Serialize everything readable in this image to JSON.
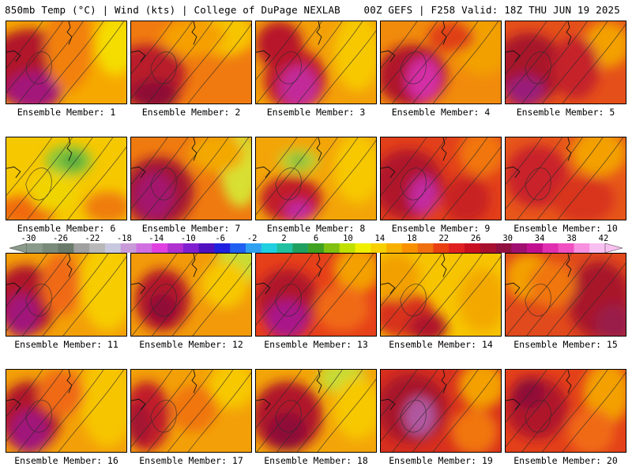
{
  "header": {
    "left": "850mb Temp (°C) | Wind (kts) | College of DuPage NEXLAB",
    "right": "00Z GEFS | F258 Valid: 18Z THU JUN 19 2025"
  },
  "panels": [
    {
      "label": "Ensemble Member: 1",
      "field": {
        "base": "#f6a800",
        "hot": [
          [
            30,
            60,
            55,
            50,
            "#b1142a"
          ],
          [
            35,
            90,
            35,
            25,
            "#a3157a"
          ],
          [
            140,
            30,
            25,
            40,
            "#f5dd00"
          ],
          [
            80,
            30,
            30,
            60,
            "#f2800a"
          ]
        ]
      }
    },
    {
      "label": "Ensemble Member: 2",
      "field": {
        "base": "#f07a10",
        "hot": [
          [
            20,
            70,
            50,
            40,
            "#b91c2a"
          ],
          [
            30,
            95,
            30,
            20,
            "#8d1035"
          ],
          [
            120,
            15,
            40,
            30,
            "#f7c400"
          ],
          [
            80,
            20,
            40,
            25,
            "#f5a000"
          ]
        ]
      }
    },
    {
      "label": "Ensemble Member: 3",
      "field": {
        "base": "#f3a008",
        "hot": [
          [
            50,
            75,
            40,
            40,
            "#c01e2a"
          ],
          [
            55,
            85,
            25,
            28,
            "#c22b9a"
          ],
          [
            30,
            30,
            30,
            30,
            "#b8142c"
          ],
          [
            130,
            40,
            30,
            50,
            "#f7c800"
          ]
        ]
      }
    },
    {
      "label": "Ensemble Member: 4",
      "field": {
        "base": "#f18b0c",
        "hot": [
          [
            40,
            70,
            45,
            40,
            "#b0162c"
          ],
          [
            55,
            75,
            22,
            28,
            "#d42fa6"
          ],
          [
            130,
            30,
            35,
            40,
            "#f2a000"
          ],
          [
            90,
            20,
            30,
            20,
            "#e04014"
          ]
        ]
      }
    },
    {
      "label": "Ensemble Member: 5",
      "field": {
        "base": "#e5501a",
        "hot": [
          [
            30,
            60,
            45,
            45,
            "#a8142c"
          ],
          [
            25,
            90,
            25,
            20,
            "#9a1c7a"
          ],
          [
            130,
            30,
            30,
            30,
            "#f3a000"
          ],
          [
            90,
            60,
            30,
            40,
            "#c5202a"
          ]
        ]
      }
    },
    {
      "label": "Ensemble Member: 6",
      "field": {
        "base": "#f6c800",
        "hot": [
          [
            80,
            30,
            30,
            20,
            "#8cc83a"
          ],
          [
            85,
            30,
            14,
            10,
            "#4aa53c"
          ],
          [
            25,
            95,
            40,
            20,
            "#f06b10"
          ],
          [
            130,
            90,
            30,
            20,
            "#ef7d10"
          ],
          [
            60,
            70,
            30,
            25,
            "#f0d400"
          ]
        ]
      }
    },
    {
      "label": "Ensemble Member: 7",
      "field": {
        "base": "#ef7a10",
        "hot": [
          [
            35,
            70,
            45,
            45,
            "#a31230"
          ],
          [
            30,
            75,
            25,
            30,
            "#a4156e"
          ],
          [
            140,
            40,
            25,
            50,
            "#d8e030"
          ],
          [
            110,
            20,
            35,
            25,
            "#f3a800"
          ]
        ]
      }
    },
    {
      "label": "Ensemble Member: 8",
      "field": {
        "base": "#f3a508",
        "hot": [
          [
            55,
            30,
            25,
            15,
            "#b8d438"
          ],
          [
            55,
            30,
            10,
            6,
            "#58a840"
          ],
          [
            45,
            80,
            40,
            30,
            "#c11c2a"
          ],
          [
            55,
            95,
            18,
            14,
            "#c126a0"
          ],
          [
            130,
            40,
            30,
            45,
            "#f7c800"
          ]
        ]
      }
    },
    {
      "label": "Ensemble Member: 9",
      "field": {
        "base": "#e2401a",
        "hot": [
          [
            35,
            60,
            45,
            45,
            "#b0142c"
          ],
          [
            55,
            75,
            18,
            25,
            "#c22aa0"
          ],
          [
            130,
            20,
            30,
            30,
            "#f07610"
          ],
          [
            110,
            80,
            30,
            30,
            "#c82024"
          ]
        ]
      }
    },
    {
      "label": "Ensemble Member: 10",
      "field": {
        "base": "#e7561a",
        "hot": [
          [
            40,
            50,
            40,
            40,
            "#c9222a"
          ],
          [
            120,
            20,
            35,
            30,
            "#f3a000"
          ],
          [
            100,
            80,
            40,
            30,
            "#d8361e"
          ]
        ]
      }
    },
    {
      "label": "Ensemble Member: 11",
      "field": {
        "base": "#f3a008",
        "hot": [
          [
            25,
            60,
            40,
            45,
            "#b0142c"
          ],
          [
            20,
            80,
            22,
            28,
            "#a0167a"
          ],
          [
            130,
            40,
            35,
            60,
            "#f7cc00"
          ],
          [
            70,
            40,
            25,
            40,
            "#f06a12"
          ]
        ]
      }
    },
    {
      "label": "Ensemble Member: 12",
      "field": {
        "base": "#f29a0a",
        "hot": [
          [
            40,
            60,
            35,
            40,
            "#b2162c"
          ],
          [
            40,
            70,
            18,
            18,
            "#8e1038"
          ],
          [
            140,
            10,
            30,
            30,
            "#c8dc34"
          ],
          [
            120,
            40,
            30,
            30,
            "#f7c800"
          ]
        ]
      }
    },
    {
      "label": "Ensemble Member: 13",
      "field": {
        "base": "#e6401a",
        "hot": [
          [
            40,
            60,
            40,
            40,
            "#b0142c"
          ],
          [
            40,
            85,
            28,
            25,
            "#a8168a"
          ],
          [
            130,
            20,
            30,
            30,
            "#f3a000"
          ],
          [
            110,
            70,
            35,
            30,
            "#f06a12"
          ]
        ]
      }
    },
    {
      "label": "Ensemble Member: 14",
      "field": {
        "base": "#f7c400",
        "hot": [
          [
            30,
            80,
            40,
            30,
            "#d8301e"
          ],
          [
            60,
            95,
            25,
            20,
            "#b0142c"
          ],
          [
            20,
            30,
            30,
            30,
            "#f2a000"
          ],
          [
            130,
            60,
            30,
            40,
            "#f3a800"
          ]
        ]
      }
    },
    {
      "label": "Ensemble Member: 15",
      "field": {
        "base": "#e14a1c",
        "hot": [
          [
            120,
            60,
            40,
            50,
            "#a8142c"
          ],
          [
            30,
            30,
            30,
            30,
            "#f3a000"
          ],
          [
            140,
            90,
            25,
            25,
            "#9a1c4a"
          ],
          [
            60,
            40,
            30,
            30,
            "#f07610"
          ]
        ]
      }
    },
    {
      "label": "Ensemble Member: 16",
      "field": {
        "base": "#f3a008",
        "hot": [
          [
            30,
            60,
            40,
            45,
            "#b0142c"
          ],
          [
            30,
            80,
            25,
            28,
            "#a0167a"
          ],
          [
            130,
            40,
            35,
            60,
            "#f7c400"
          ],
          [
            70,
            30,
            30,
            30,
            "#f06a12"
          ]
        ]
      }
    },
    {
      "label": "Ensemble Member: 17",
      "field": {
        "base": "#f3a008",
        "hot": [
          [
            20,
            60,
            30,
            45,
            "#c11c2a"
          ],
          [
            10,
            70,
            15,
            25,
            "#a31230"
          ],
          [
            130,
            20,
            30,
            30,
            "#f7c800"
          ],
          [
            80,
            50,
            30,
            30,
            "#f07610"
          ]
        ]
      }
    },
    {
      "label": "Ensemble Member: 18",
      "field": {
        "base": "#f3a508",
        "hot": [
          [
            40,
            60,
            45,
            45,
            "#b0142c"
          ],
          [
            40,
            80,
            25,
            25,
            "#8e1038"
          ],
          [
            110,
            10,
            30,
            20,
            "#c8dc34"
          ],
          [
            130,
            50,
            30,
            40,
            "#f7c800"
          ]
        ]
      }
    },
    {
      "label": "Ensemble Member: 19",
      "field": {
        "base": "#d8301e",
        "hot": [
          [
            40,
            50,
            45,
            45,
            "#a8142c"
          ],
          [
            50,
            60,
            20,
            25,
            "#b058a0"
          ],
          [
            130,
            20,
            30,
            30,
            "#f3a000"
          ],
          [
            120,
            80,
            30,
            30,
            "#f07610"
          ]
        ]
      }
    },
    {
      "label": "Ensemble Member: 20",
      "field": {
        "base": "#e3401a",
        "hot": [
          [
            40,
            50,
            40,
            40,
            "#b0142c"
          ],
          [
            30,
            30,
            20,
            20,
            "#8e1038"
          ],
          [
            130,
            30,
            30,
            40,
            "#f3a000"
          ],
          [
            110,
            80,
            30,
            30,
            "#f06a12"
          ]
        ]
      }
    }
  ],
  "colorbar": {
    "ticks": [
      "-30",
      "-26",
      "-22",
      "-18",
      "-14",
      "-10",
      "-6",
      "-2",
      "2",
      "6",
      "10",
      "14",
      "18",
      "22",
      "26",
      "30",
      "34",
      "38",
      "42"
    ],
    "colors": [
      "#8a9a8a",
      "#7a8a7a",
      "#6a7a6a",
      "#a0a0a0",
      "#b8b8b8",
      "#c8c8e0",
      "#c89ad8",
      "#d070e0",
      "#e040e0",
      "#b030d0",
      "#8020d0",
      "#5010c0",
      "#2020e0",
      "#2060f0",
      "#30a0f0",
      "#20d0e0",
      "#20c0a0",
      "#20a060",
      "#40a020",
      "#80c010",
      "#c0e000",
      "#f0f000",
      "#f8d000",
      "#f8b000",
      "#f89000",
      "#f07010",
      "#e84010",
      "#e02020",
      "#c81020",
      "#a81030",
      "#901040",
      "#a01070",
      "#c01090",
      "#e030b0",
      "#f050c0",
      "#f890e0",
      "#f8c0f0"
    ]
  }
}
